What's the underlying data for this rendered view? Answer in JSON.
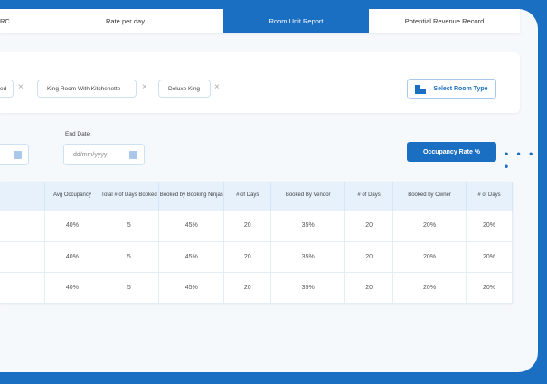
{
  "tabs": [
    "RC",
    "Rate per day",
    "Room Unit Report",
    "Potential Revenue Record"
  ],
  "active_tab": "Room Unit Report",
  "chips": [
    "ed",
    "King Room With Kitchenette",
    "Deluxe King"
  ],
  "chip_remove": "×",
  "select_room_type": "Select Room Type",
  "end_date": {
    "label": "End Date",
    "placeholder": "dd/mm/yyyy"
  },
  "occupancy_button": "Occupancy Rate %",
  "more": "• • • •",
  "table": {
    "headers": [
      "",
      "Avg Occupancy",
      "Total # of Days Booked",
      "Booked by Booking Ninjas",
      "# of Days",
      "Booked By Vendor",
      "# of Days",
      "Booked by Owner",
      "# of Days"
    ],
    "rows": [
      [
        "",
        "40%",
        "5",
        "45%",
        "20",
        "35%",
        "20",
        "20%",
        "20%"
      ],
      [
        "",
        "40%",
        "5",
        "45%",
        "20",
        "35%",
        "20",
        "20%",
        "20%"
      ],
      [
        "",
        "40%",
        "5",
        "45%",
        "20",
        "35%",
        "20",
        "20%",
        "20%"
      ]
    ]
  },
  "colors": {
    "accent": "#1b6fc2"
  }
}
